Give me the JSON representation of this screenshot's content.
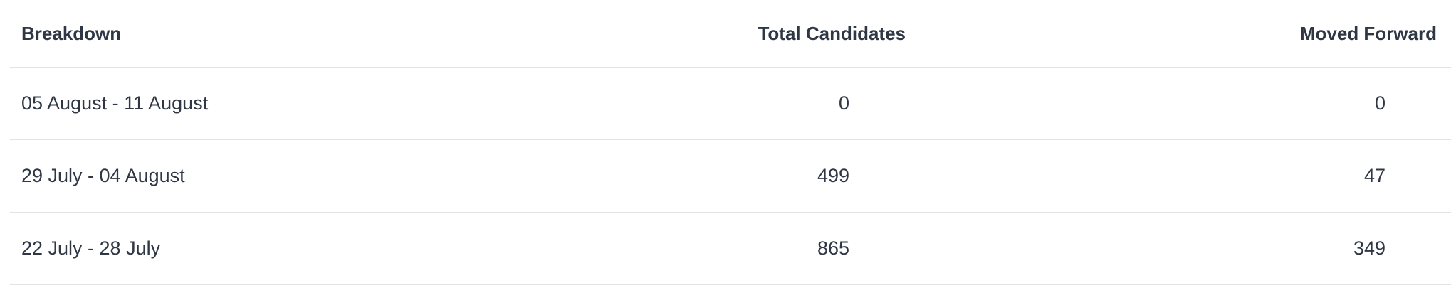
{
  "table": {
    "headers": {
      "breakdown": "Breakdown",
      "total_candidates": "Total Candidates",
      "moved_forward": "Moved Forward"
    },
    "rows": [
      {
        "breakdown": "05 August - 11 August",
        "total_candidates": "0",
        "moved_forward": "0"
      },
      {
        "breakdown": "29 July - 04 August",
        "total_candidates": "499",
        "moved_forward": "47"
      },
      {
        "breakdown": "22 July - 28 July",
        "total_candidates": "865",
        "moved_forward": "349"
      }
    ]
  }
}
